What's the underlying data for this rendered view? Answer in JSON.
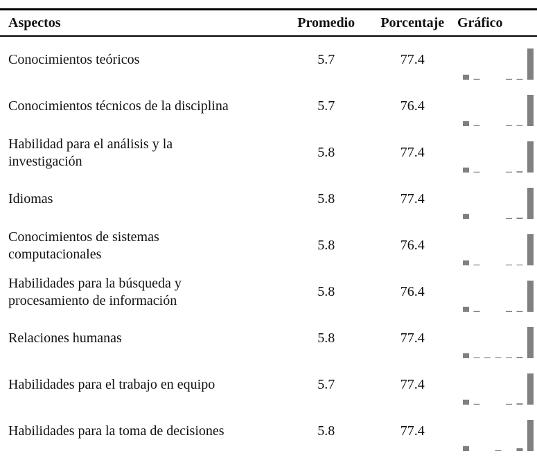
{
  "table": {
    "headers": [
      "Aspectos",
      "Promedio",
      "Porcentaje",
      "Gráfico"
    ],
    "rows": [
      {
        "aspecto": "Conocimientos teóricos",
        "promedio": 5.7,
        "porcentaje": 77.4,
        "grafico": [
          12,
          2,
          0,
          0,
          2,
          2,
          75
        ]
      },
      {
        "aspecto": "Conocimientos técnicos de la disciplina",
        "promedio": 5.7,
        "porcentaje": 76.4,
        "grafico": [
          12,
          2,
          0,
          0,
          2,
          2,
          75
        ]
      },
      {
        "aspecto": "Habilidad para el análisis y la investigación",
        "promedio": 5.8,
        "porcentaje": 77.4,
        "grafico": [
          12,
          2,
          0,
          0,
          2,
          3,
          75
        ]
      },
      {
        "aspecto": "Idiomas",
        "promedio": 5.8,
        "porcentaje": 77.4,
        "grafico": [
          12,
          0,
          0,
          0,
          2,
          3,
          75
        ]
      },
      {
        "aspecto": "Conocimientos de sistemas computacionales",
        "promedio": 5.8,
        "porcentaje": 76.4,
        "grafico": [
          12,
          2,
          0,
          0,
          2,
          2,
          75
        ]
      },
      {
        "aspecto": "Habilidades para la búsqueda y procesamiento de información",
        "promedio": 5.8,
        "porcentaje": 76.4,
        "grafico": [
          12,
          2,
          0,
          0,
          2,
          2,
          75
        ]
      },
      {
        "aspecto": "Relaciones humanas",
        "promedio": 5.8,
        "porcentaje": 77.4,
        "grafico": [
          12,
          2,
          2,
          2,
          2,
          3,
          75
        ]
      },
      {
        "aspecto": "Habilidades para el trabajo en equipo",
        "promedio": 5.7,
        "porcentaje": 77.4,
        "grafico": [
          12,
          2,
          0,
          0,
          2,
          3,
          75
        ]
      },
      {
        "aspecto": "Habilidades para la toma de decisiones",
        "promedio": 5.8,
        "porcentaje": 77.4,
        "grafico": [
          12,
          0,
          0,
          2,
          0,
          7,
          75
        ]
      }
    ]
  }
}
